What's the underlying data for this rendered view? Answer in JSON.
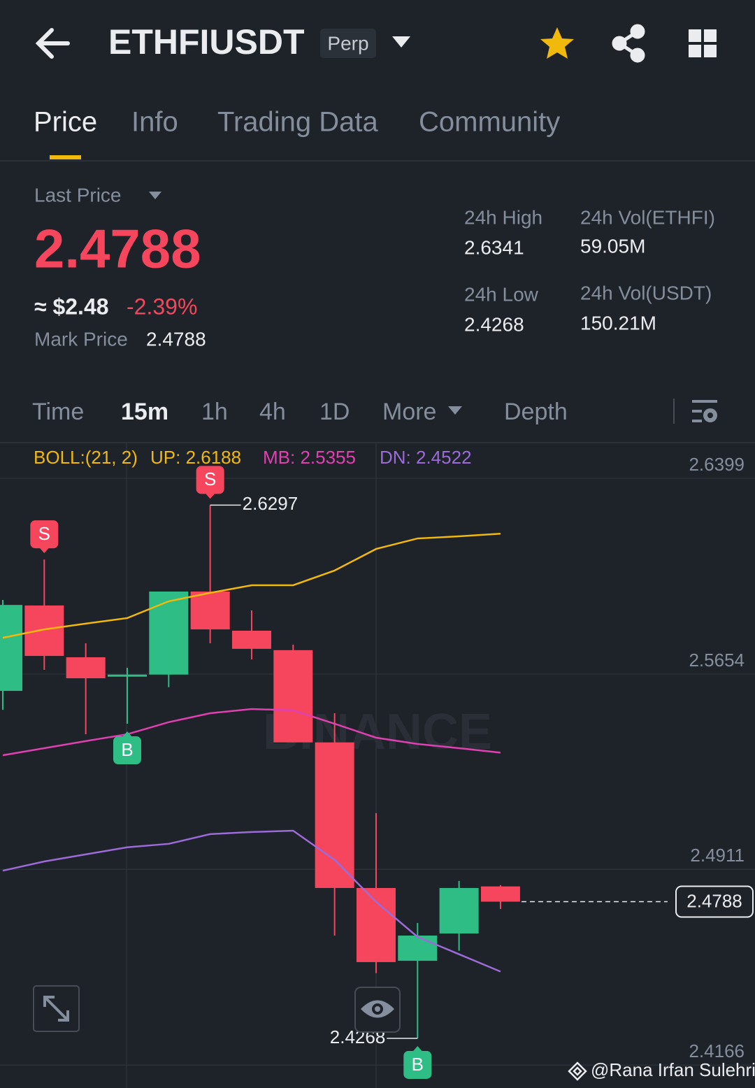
{
  "header": {
    "symbol": "ETHFIUSDT",
    "badge": "Perp"
  },
  "tabs": [
    "Price",
    "Info",
    "Trading Data",
    "Community"
  ],
  "price": {
    "label": "Last Price",
    "value": "2.4788",
    "usd": "≈ $2.48",
    "change": "-2.39%",
    "mark_label": "Mark Price",
    "mark_value": "2.4788"
  },
  "stats": [
    {
      "label": "24h High",
      "value": "2.6341"
    },
    {
      "label": "24h Vol(ETHFI)",
      "value": "59.05M"
    },
    {
      "label": "24h Low",
      "value": "2.4268"
    },
    {
      "label": "24h Vol(USDT)",
      "value": "150.21M"
    }
  ],
  "intervals": [
    "Time",
    "15m",
    "1h",
    "4h",
    "1D",
    "More",
    "Depth"
  ],
  "chart_data": {
    "type": "candlestick",
    "indicator": "BOLL:(21, 2)",
    "up_color": "#2ebd85",
    "down_color": "#f6465d",
    "candles": [
      {
        "open": 2.559,
        "high": 2.5936,
        "low": 2.5518,
        "close": 2.5917
      },
      {
        "open": 2.5915,
        "high": 2.609,
        "low": 2.567,
        "close": 2.5723,
        "signal": "S"
      },
      {
        "open": 2.5718,
        "high": 2.5771,
        "low": 2.5425,
        "close": 2.5638
      },
      {
        "open": 2.5644,
        "high": 2.5678,
        "low": 2.5465,
        "close": 2.5652,
        "signal": "B"
      },
      {
        "open": 2.5652,
        "high": 2.5968,
        "low": 2.5604,
        "close": 2.5968
      },
      {
        "open": 2.5968,
        "high": 2.6297,
        "low": 2.5771,
        "close": 2.5824,
        "signal": "S"
      },
      {
        "open": 2.5819,
        "high": 2.5896,
        "low": 2.571,
        "close": 2.575
      },
      {
        "open": 2.5745,
        "high": 2.5766,
        "low": 2.5394,
        "close": 2.5394
      },
      {
        "open": 2.5394,
        "high": 2.5505,
        "low": 2.4659,
        "close": 2.484
      },
      {
        "open": 2.484,
        "high": 2.5125,
        "low": 2.4516,
        "close": 2.4558
      },
      {
        "open": 2.4563,
        "high": 2.4707,
        "low": 2.4268,
        "close": 2.4659,
        "signal": "B"
      },
      {
        "open": 2.4667,
        "high": 2.4867,
        "low": 2.4601,
        "close": 2.484
      },
      {
        "open": 2.4846,
        "high": 2.4851,
        "low": 2.476,
        "close": 2.4788
      }
    ],
    "bands": [
      {
        "name": "UP: 2.6188",
        "color": "#f0b90b",
        "values": [
          2.5792,
          2.5824,
          2.5846,
          2.5867,
          2.5931,
          2.5963,
          2.5992,
          2.5992,
          2.6048,
          2.613,
          2.617,
          2.6178,
          2.6188
        ]
      },
      {
        "name": "MB: 2.5355",
        "color": "#e040b0",
        "values": [
          2.5345,
          2.5372,
          2.5399,
          2.5425,
          2.5471,
          2.5505,
          2.5521,
          2.5516,
          2.5465,
          2.5412,
          2.5388,
          2.5372,
          2.5355
        ]
      },
      {
        "name": "DN: 2.4522",
        "color": "#9b6bd8",
        "values": [
          2.4906,
          2.4941,
          2.4968,
          2.4995,
          2.5008,
          2.5045,
          2.5053,
          2.5058,
          2.4947,
          2.4787,
          2.4654,
          2.4588,
          2.4522
        ]
      }
    ],
    "ylim": [
      2.4079,
      2.6532
    ],
    "yticks": [
      2.6399,
      2.5654,
      2.4911,
      2.4166
    ],
    "grid": true
  },
  "watermark": "BINANCE",
  "footer": "@Rana Irfan Sulehri"
}
